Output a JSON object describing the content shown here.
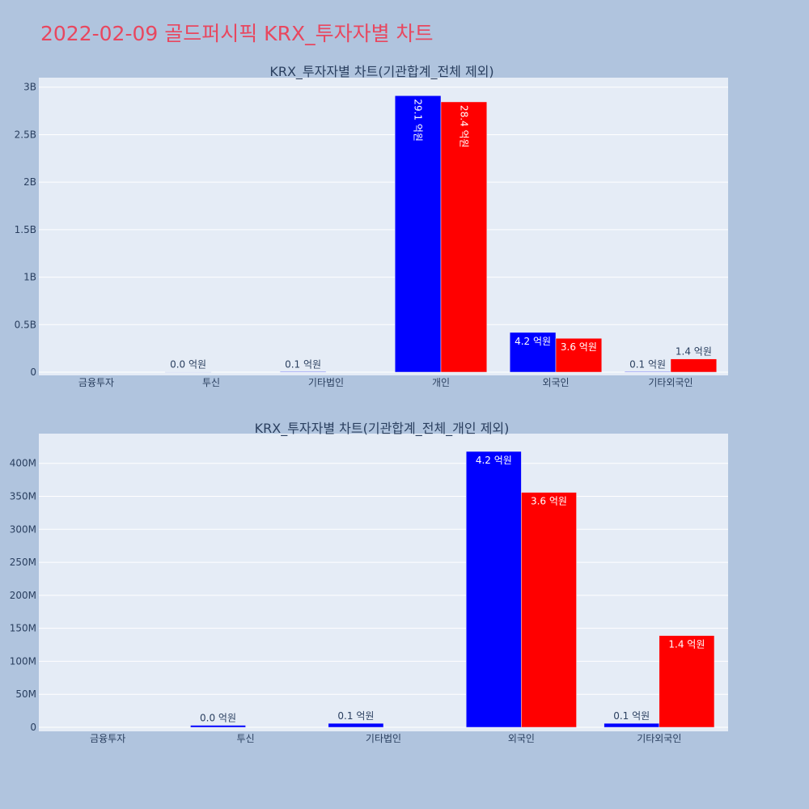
{
  "page_title": "2022-02-09 골드퍼시픽 KRX_투자자별 차트",
  "chart_data": [
    {
      "type": "bar",
      "title": "KRX_투자자별 차트(기관합계_전체 제외)",
      "categories": [
        "금융투자",
        "투신",
        "기타법인",
        "개인",
        "외국인",
        "기타외국인"
      ],
      "ylim": [
        0,
        3100000000
      ],
      "y_ticks": [
        0,
        500000000,
        1000000000,
        1500000000,
        2000000000,
        2500000000,
        3000000000
      ],
      "y_tick_labels": [
        "0",
        "0.5B",
        "1B",
        "1.5B",
        "2B",
        "2.5B",
        "3B"
      ],
      "grid": true,
      "series": [
        {
          "color": "#0000ff",
          "values": [
            0,
            3000000,
            6000000,
            2910000000,
            418000000,
            6000000
          ],
          "labels": [
            "",
            "0.0 억원",
            "0.1 억원",
            "29.1 억원",
            "4.2 억원",
            "0.1 억원"
          ]
        },
        {
          "color": "#ff0000",
          "values": [
            0,
            0,
            0,
            2845000000,
            356000000,
            139000000
          ],
          "labels": [
            "",
            "",
            "",
            "28.4 억원",
            "3.6 억원",
            "1.4 억원"
          ]
        }
      ]
    },
    {
      "type": "bar",
      "title": "KRX_투자자별 차트(기관합계_전체_개인 제외)",
      "categories": [
        "금융투자",
        "투신",
        "기타법인",
        "외국인",
        "기타외국인"
      ],
      "ylim": [
        0,
        445000000
      ],
      "y_ticks": [
        0,
        50000000,
        100000000,
        150000000,
        200000000,
        250000000,
        300000000,
        350000000,
        400000000
      ],
      "y_tick_labels": [
        "0",
        "50M",
        "100M",
        "150M",
        "200M",
        "250M",
        "300M",
        "350M",
        "400M"
      ],
      "grid": true,
      "series": [
        {
          "color": "#0000ff",
          "values": [
            0,
            3000000,
            6000000,
            418000000,
            6000000
          ],
          "labels": [
            "",
            "0.0 억원",
            "0.1 억원",
            "4.2 억원",
            "0.1 억원"
          ]
        },
        {
          "color": "#ff0000",
          "values": [
            0,
            0,
            0,
            356000000,
            139000000
          ],
          "labels": [
            "",
            "",
            "",
            "3.6 억원",
            "1.4 억원"
          ]
        }
      ]
    }
  ]
}
